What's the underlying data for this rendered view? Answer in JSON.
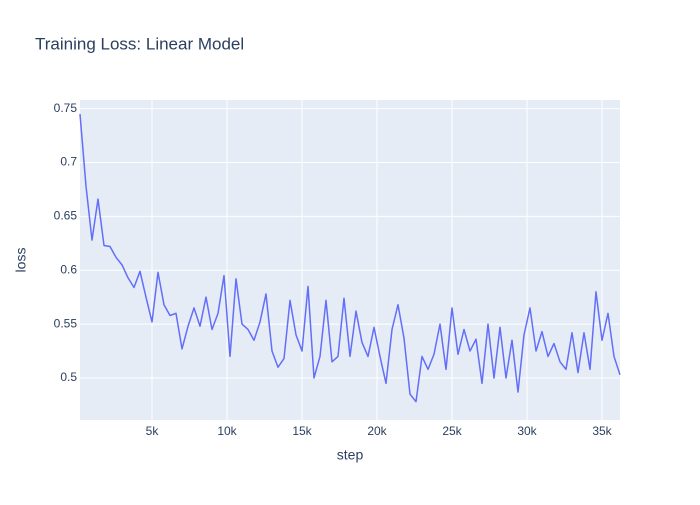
{
  "chart_data": {
    "type": "line",
    "title": "Training Loss: Linear Model",
    "x_label": "step",
    "y_label": "loss",
    "x": [
      200,
      600,
      1000,
      1400,
      1800,
      2200,
      2600,
      3000,
      3400,
      3800,
      4200,
      4600,
      5000,
      5400,
      5800,
      6200,
      6600,
      7000,
      7400,
      7800,
      8200,
      8600,
      9000,
      9400,
      9800,
      10200,
      10600,
      11000,
      11400,
      11800,
      12200,
      12600,
      13000,
      13400,
      13800,
      14200,
      14600,
      15000,
      15400,
      15800,
      16200,
      16600,
      17000,
      17400,
      17800,
      18200,
      18600,
      19000,
      19400,
      19800,
      20200,
      20600,
      21000,
      21400,
      21800,
      22200,
      22600,
      23000,
      23400,
      23800,
      24200,
      24600,
      25000,
      25400,
      25800,
      26200,
      26600,
      27000,
      27400,
      27800,
      28200,
      28600,
      29000,
      29400,
      29800,
      30200,
      30600,
      31000,
      31400,
      31800,
      32200,
      32600,
      33000,
      33400,
      33800,
      34200,
      34600,
      35000,
      35400,
      35800,
      36200
    ],
    "series": [
      {
        "name": "loss",
        "color": "#636efa",
        "values": [
          0.745,
          0.678,
          0.628,
          0.666,
          0.623,
          0.622,
          0.612,
          0.605,
          0.593,
          0.584,
          0.599,
          0.575,
          0.552,
          0.598,
          0.568,
          0.558,
          0.56,
          0.527,
          0.548,
          0.565,
          0.548,
          0.575,
          0.545,
          0.56,
          0.595,
          0.52,
          0.592,
          0.55,
          0.545,
          0.535,
          0.552,
          0.578,
          0.525,
          0.51,
          0.518,
          0.572,
          0.54,
          0.525,
          0.585,
          0.5,
          0.52,
          0.572,
          0.515,
          0.52,
          0.574,
          0.52,
          0.562,
          0.533,
          0.52,
          0.547,
          0.52,
          0.495,
          0.545,
          0.568,
          0.537,
          0.485,
          0.478,
          0.52,
          0.508,
          0.522,
          0.55,
          0.508,
          0.565,
          0.522,
          0.545,
          0.525,
          0.536,
          0.495,
          0.55,
          0.5,
          0.547,
          0.5,
          0.535,
          0.487,
          0.54,
          0.565,
          0.525,
          0.543,
          0.52,
          0.532,
          0.515,
          0.508,
          0.542,
          0.505,
          0.542,
          0.508,
          0.58,
          0.535,
          0.56,
          0.52,
          0.503
        ]
      }
    ],
    "xlim": [
      200,
      36200
    ],
    "ylim": [
      0.461,
      0.758
    ],
    "xticks": [
      {
        "value": 5000,
        "label": "5k"
      },
      {
        "value": 10000,
        "label": "10k"
      },
      {
        "value": 15000,
        "label": "15k"
      },
      {
        "value": 20000,
        "label": "20k"
      },
      {
        "value": 25000,
        "label": "25k"
      },
      {
        "value": 30000,
        "label": "30k"
      },
      {
        "value": 35000,
        "label": "35k"
      }
    ],
    "yticks": [
      0.5,
      0.55,
      0.6,
      0.65,
      0.7,
      0.75
    ],
    "grid": true
  }
}
